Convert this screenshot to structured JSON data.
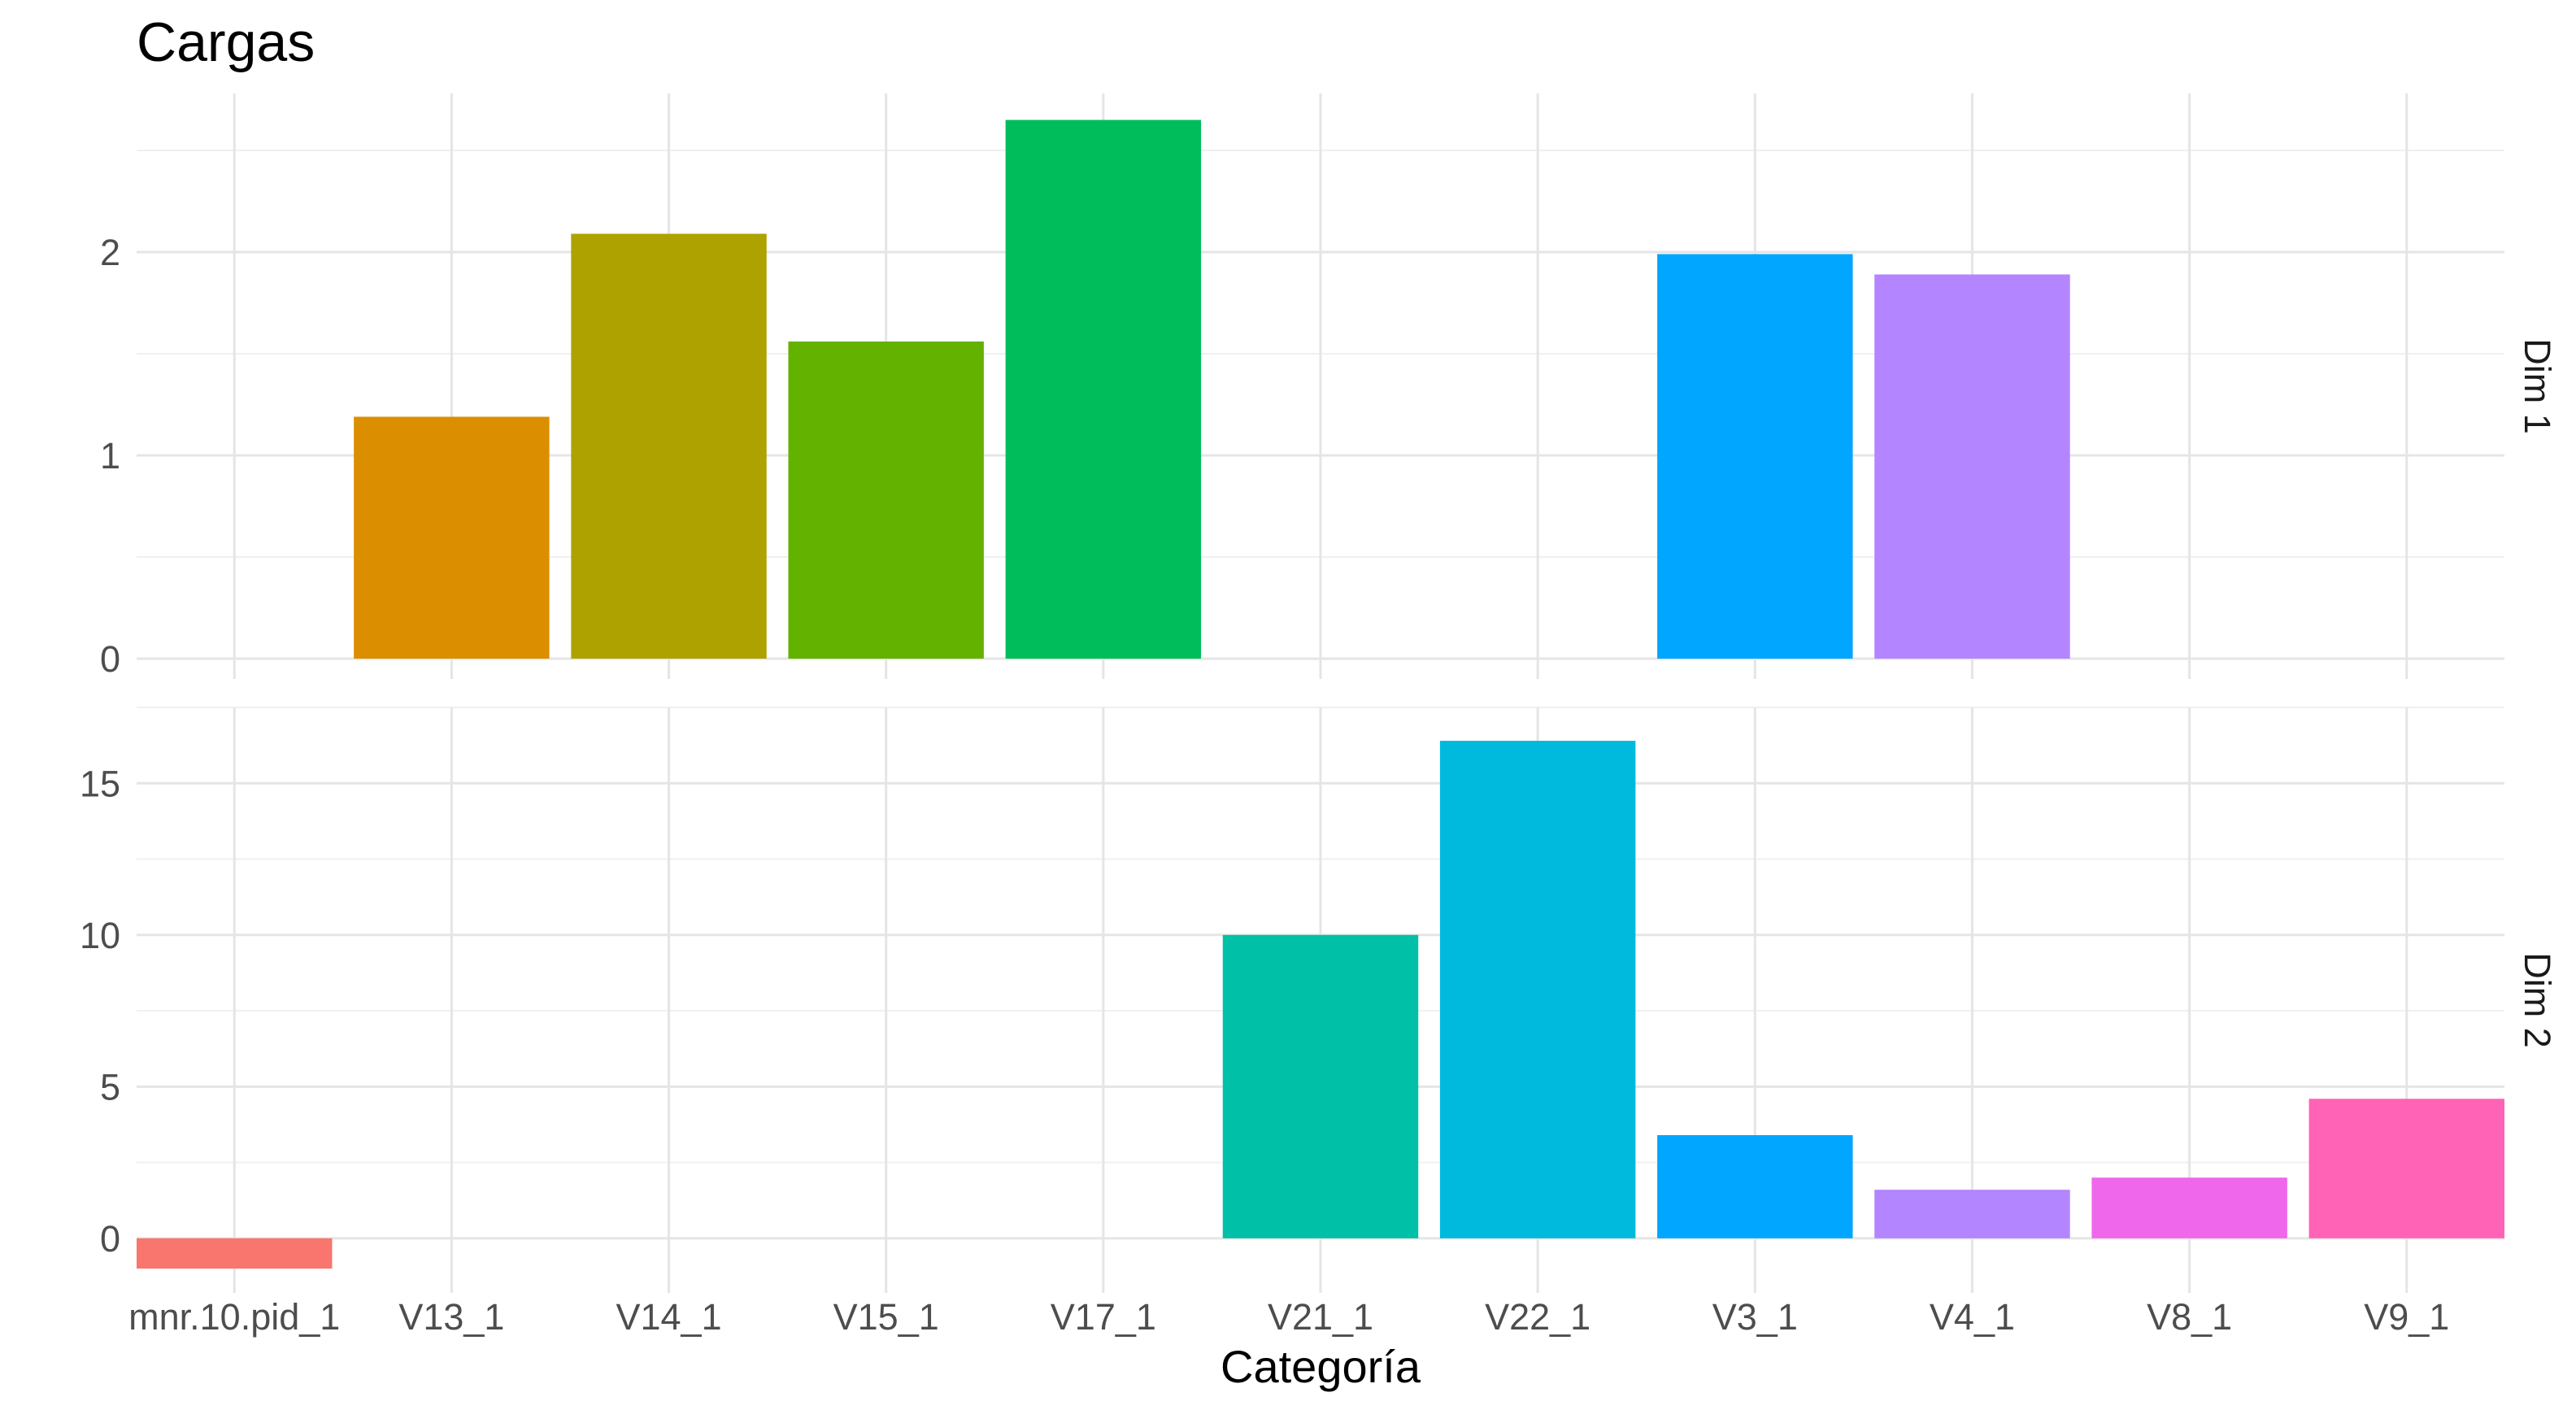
{
  "chart_data": {
    "type": "bar",
    "title": "Cargas",
    "xlabel": "Categoría",
    "ylabel": "",
    "grid": true,
    "legend": "none",
    "categories": [
      "mnr.10.pid_1",
      "V13_1",
      "V14_1",
      "V15_1",
      "V17_1",
      "V21_1",
      "V22_1",
      "V3_1",
      "V4_1",
      "V8_1",
      "V9_1"
    ],
    "colors": [
      "#F8766D",
      "#DB8E00",
      "#AEA200",
      "#64B200",
      "#00BD5C",
      "#00C1A7",
      "#00BADE",
      "#00A6FF",
      "#B385FF",
      "#EF67EB",
      "#FF63B6"
    ],
    "panels": [
      {
        "strip": "Dim 1",
        "ylim": [
          -0.1,
          2.78
        ],
        "yticks": [
          0,
          1,
          2
        ],
        "values": [
          null,
          1.19,
          2.09,
          1.56,
          2.65,
          null,
          null,
          1.99,
          1.89,
          null,
          null
        ]
      },
      {
        "strip": "Dim 2",
        "ylim": [
          -1.8,
          17.5
        ],
        "yticks": [
          0,
          5,
          10,
          15
        ],
        "values": [
          -1.0,
          null,
          null,
          null,
          null,
          10.0,
          16.4,
          3.4,
          1.6,
          2.0,
          4.6
        ]
      }
    ]
  }
}
